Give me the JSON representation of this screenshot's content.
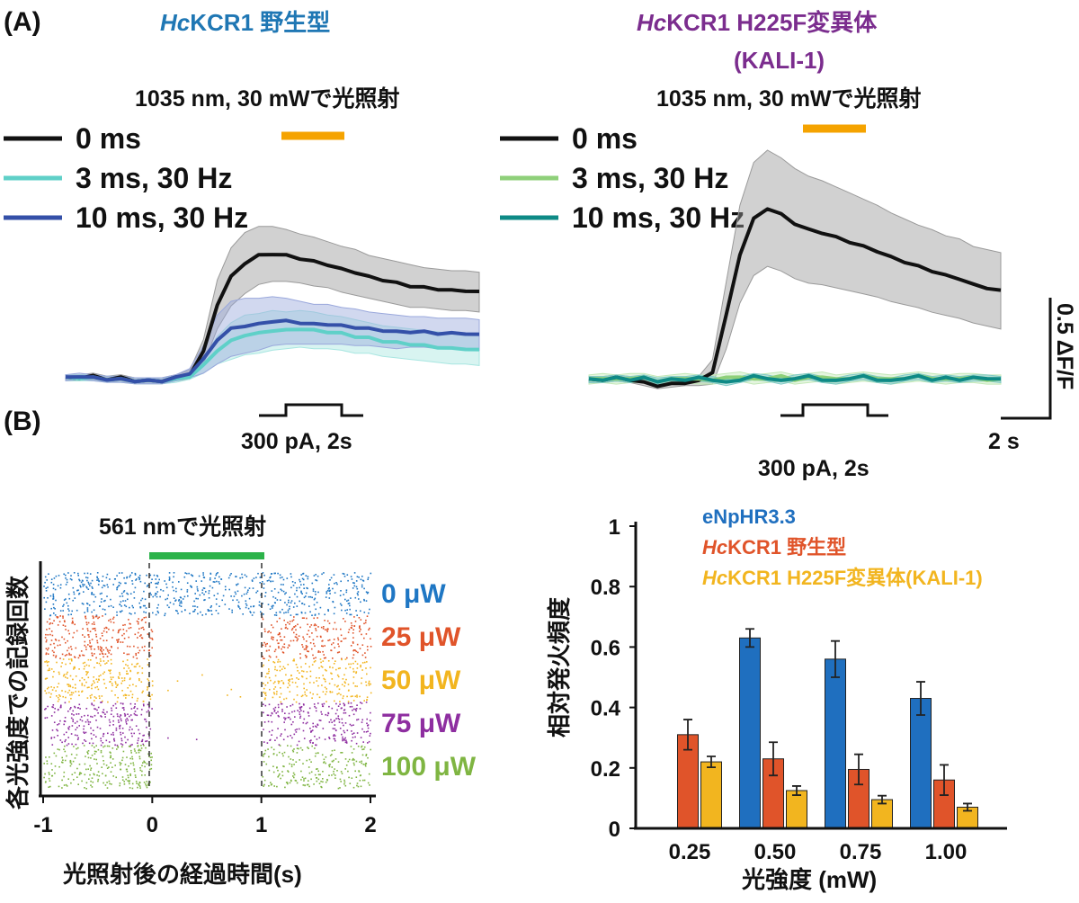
{
  "panel_a_label": "(A)",
  "panel_b_label": "(B)",
  "chart_data": [
    {
      "type": "line",
      "panel": "A-left",
      "title_italic": "Hc",
      "title_rest": "KCR1 野生型",
      "title_color": "#1f77b4",
      "stim_label": "1035 nm, 30 mWで光照射",
      "stim_color": "#f5a300",
      "current_label": "300 pA, 2s",
      "series": [
        {
          "name": "0 ms",
          "color": "#111111",
          "band": "#9a9a9a",
          "values": [
            0,
            0,
            0.01,
            -0.01,
            0,
            -0.02,
            -0.02,
            -0.02,
            0,
            0.02,
            0.17,
            0.48,
            0.66,
            0.75,
            0.8,
            0.81,
            0.8,
            0.78,
            0.76,
            0.74,
            0.71,
            0.69,
            0.66,
            0.64,
            0.62,
            0.6,
            0.59,
            0.58,
            0.57,
            0.57,
            0.56
          ],
          "band_width": [
            0.02,
            0.02,
            0.02,
            0.02,
            0.02,
            0.02,
            0.02,
            0.02,
            0.02,
            0.03,
            0.08,
            0.16,
            0.19,
            0.2,
            0.19,
            0.18,
            0.17,
            0.16,
            0.16,
            0.15,
            0.15,
            0.15,
            0.14,
            0.14,
            0.14,
            0.14,
            0.13,
            0.13,
            0.13,
            0.13,
            0.13
          ]
        },
        {
          "name": "3 ms, 30 Hz",
          "color": "#5fd0c8",
          "band": "#a8e6e1",
          "values": [
            0,
            0,
            0,
            -0.01,
            -0.01,
            -0.02,
            -0.02,
            -0.02,
            -0.01,
            0.01,
            0.08,
            0.18,
            0.24,
            0.28,
            0.29,
            0.31,
            0.31,
            0.32,
            0.31,
            0.3,
            0.29,
            0.27,
            0.26,
            0.24,
            0.23,
            0.22,
            0.21,
            0.2,
            0.19,
            0.19,
            0.18
          ],
          "band_width": [
            0.02,
            0.02,
            0.02,
            0.02,
            0.02,
            0.02,
            0.02,
            0.02,
            0.02,
            0.02,
            0.05,
            0.09,
            0.12,
            0.13,
            0.13,
            0.13,
            0.12,
            0.12,
            0.12,
            0.11,
            0.11,
            0.11,
            0.1,
            0.1,
            0.1,
            0.1,
            0.1,
            0.1,
            0.1,
            0.1,
            0.1
          ]
        },
        {
          "name": "10 ms, 30 Hz",
          "color": "#3450a8",
          "band": "#9aa8dc",
          "values": [
            0,
            0.01,
            0,
            -0.01,
            -0.01,
            -0.02,
            -0.02,
            -0.02,
            0,
            0.03,
            0.12,
            0.25,
            0.32,
            0.34,
            0.35,
            0.37,
            0.37,
            0.36,
            0.35,
            0.35,
            0.34,
            0.33,
            0.32,
            0.31,
            0.3,
            0.3,
            0.3,
            0.29,
            0.29,
            0.29,
            0.28
          ],
          "band_width": [
            0.02,
            0.02,
            0.02,
            0.02,
            0.02,
            0.02,
            0.02,
            0.02,
            0.02,
            0.03,
            0.09,
            0.16,
            0.18,
            0.18,
            0.17,
            0.16,
            0.15,
            0.14,
            0.13,
            0.13,
            0.12,
            0.12,
            0.11,
            0.11,
            0.11,
            0.1,
            0.1,
            0.1,
            0.1,
            0.1,
            0.1
          ]
        }
      ]
    },
    {
      "type": "line",
      "panel": "A-right",
      "title_italic": "Hc",
      "title_rest": "KCR1 H225F変異体",
      "title_line2": "(KALI-1)",
      "title_color": "#7b2d8e",
      "stim_label": "1035 nm, 30 mWで光照射",
      "stim_color": "#f5a300",
      "current_label": "300 pA, 2s",
      "scalebar_y": "0.5 ΔF/F",
      "scalebar_x": "2 s",
      "series": [
        {
          "name": "0 ms",
          "color": "#111111",
          "band": "#9a9a9a",
          "values": [
            0,
            0,
            0.01,
            0,
            -0.02,
            -0.04,
            -0.03,
            -0.02,
            -0.01,
            0.05,
            0.42,
            0.82,
            1.05,
            1.12,
            1.08,
            1.02,
            0.98,
            0.96,
            0.93,
            0.9,
            0.87,
            0.84,
            0.8,
            0.77,
            0.74,
            0.71,
            0.68,
            0.66,
            0.62,
            0.6,
            0.58
          ],
          "band_width": [
            0.02,
            0.02,
            0.02,
            0.02,
            0.02,
            0.02,
            0.02,
            0.02,
            0.03,
            0.08,
            0.22,
            0.32,
            0.37,
            0.38,
            0.37,
            0.36,
            0.35,
            0.34,
            0.33,
            0.32,
            0.31,
            0.3,
            0.29,
            0.28,
            0.27,
            0.27,
            0.26,
            0.26,
            0.25,
            0.25,
            0.25
          ]
        },
        {
          "name": "3 ms, 30 Hz",
          "color": "#8fd07a",
          "band": "#c4e8b8",
          "values": [
            0,
            0.01,
            0,
            0.01,
            0.01,
            -0.01,
            0,
            0.01,
            0,
            0,
            0.01,
            0.02,
            0,
            0.01,
            0.02,
            0,
            0.01,
            0.02,
            0,
            0.01,
            0.02,
            0.01,
            0,
            0.01,
            0.02,
            0.01,
            0,
            0.01,
            0.01,
            0,
            0
          ],
          "band_width": [
            0.03,
            0.03,
            0.03,
            0.03,
            0.03,
            0.03,
            0.03,
            0.03,
            0.03,
            0.03,
            0.03,
            0.03,
            0.03,
            0.03,
            0.03,
            0.03,
            0.03,
            0.03,
            0.03,
            0.03,
            0.03,
            0.03,
            0.03,
            0.03,
            0.03,
            0.03,
            0.03,
            0.03,
            0.03,
            0.03,
            0.03
          ]
        },
        {
          "name": "10 ms, 30 Hz",
          "color": "#0e8a86",
          "band": "#7fc9c5",
          "values": [
            0,
            0,
            0.01,
            0,
            0.01,
            -0.01,
            0,
            0,
            0.01,
            0,
            -0.02,
            0,
            0.02,
            0.01,
            -0.01,
            0.01,
            0.02,
            0,
            -0.01,
            0.01,
            0.02,
            0,
            -0.01,
            0.01,
            0.02,
            0,
            0.01,
            0,
            0.01,
            0.01,
            0
          ],
          "band_width": [
            0.02,
            0.02,
            0.02,
            0.02,
            0.02,
            0.02,
            0.02,
            0.02,
            0.02,
            0.02,
            0.02,
            0.02,
            0.02,
            0.02,
            0.02,
            0.02,
            0.02,
            0.02,
            0.02,
            0.02,
            0.02,
            0.02,
            0.02,
            0.02,
            0.02,
            0.02,
            0.02,
            0.02,
            0.02,
            0.02,
            0.02
          ]
        }
      ]
    },
    {
      "type": "scatter",
      "subtype": "raster",
      "panel": "B-left",
      "stim_label": "561 nmで光照射",
      "stim_color": "#2cb34a",
      "xlabel": "光照射後の経過時間(s)",
      "ylabel": "各光強度での記録回数",
      "xlim": [
        -1,
        2
      ],
      "xticks": [
        "-1",
        "0",
        "1",
        "2"
      ],
      "light_window": [
        0,
        1
      ],
      "groups": [
        {
          "label": "0 μW",
          "color": "#1f77c4",
          "in_window_suppression": 0.0
        },
        {
          "label": "25 μW",
          "color": "#e0542a",
          "in_window_suppression": 1.0
        },
        {
          "label": "50 μW",
          "color": "#f2b51f",
          "in_window_suppression": 0.985
        },
        {
          "label": "75 μW",
          "color": "#8e2ea0",
          "in_window_suppression": 0.995
        },
        {
          "label": "100 μW",
          "color": "#7fb542",
          "in_window_suppression": 0.998
        }
      ]
    },
    {
      "type": "bar",
      "panel": "B-right",
      "categories": [
        "0.25",
        "0.50",
        "0.75",
        "1.00"
      ],
      "xlabel": "光強度 (mW)",
      "ylabel": "相対発火頻度",
      "ylim": [
        0,
        1
      ],
      "yticks": [
        "0",
        "0.2",
        "0.4",
        "0.6",
        "0.8",
        "1"
      ],
      "series": [
        {
          "name": "eNpHR3.3",
          "color": "#1f6fbf",
          "values": [
            null,
            0.63,
            0.56,
            0.43
          ],
          "errors": [
            null,
            0.03,
            0.06,
            0.055
          ]
        },
        {
          "name_italic": "Hc",
          "name": "KCR1 野生型",
          "color": "#e0542a",
          "values": [
            0.31,
            0.23,
            0.195,
            0.16
          ],
          "errors": [
            0.05,
            0.055,
            0.05,
            0.05
          ]
        },
        {
          "name_italic": "Hc",
          "name": "KCR1 H225F変異体(KALI-1)",
          "color": "#f2b51f",
          "values": [
            0.22,
            0.125,
            0.095,
            0.07
          ],
          "errors": [
            0.018,
            0.015,
            0.013,
            0.012
          ]
        }
      ]
    }
  ]
}
